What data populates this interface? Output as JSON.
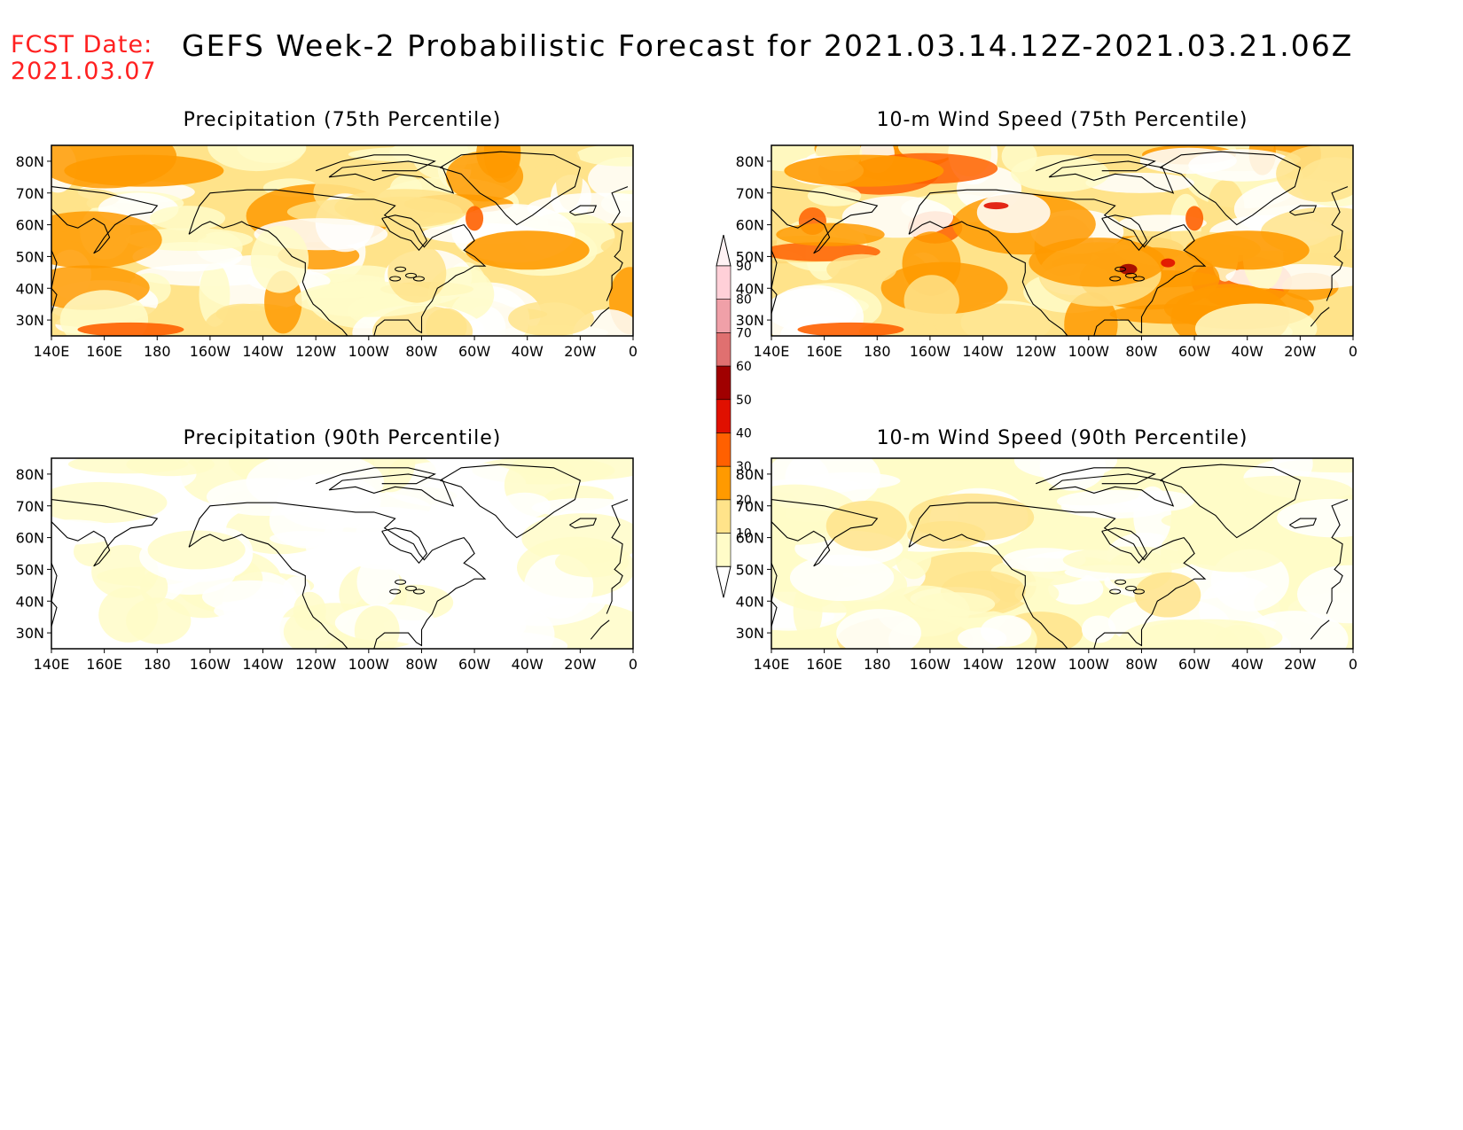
{
  "header": {
    "fcst_label": "FCST Date:",
    "fcst_date": "2021.03.07",
    "title": "GEFS Week-2 Probabilistic Forecast for 2021.03.14.12Z-2021.03.21.06Z"
  },
  "colors": {
    "fcst_text": "#ff2020",
    "shade_10": "#fffcc8",
    "shade_20": "#ffe38a",
    "shade_30": "#ff9a00",
    "shade_40": "#ff6000",
    "shade_50": "#e01000",
    "shade_60": "#a00000",
    "shade_70": "#e07070",
    "shade_80": "#f0a0a8",
    "shade_90": "#ffd0d8"
  },
  "axes": {
    "lat_labels": [
      "80N",
      "70N",
      "60N",
      "50N",
      "40N",
      "30N"
    ],
    "lon_labels": [
      "140E",
      "160E",
      "180",
      "160W",
      "140W",
      "120W",
      "100W",
      "80W",
      "60W",
      "40W",
      "20W",
      "0"
    ]
  },
  "colorbar": {
    "labels": [
      "90",
      "80",
      "70",
      "60",
      "50",
      "40",
      "30",
      "20",
      "10"
    ]
  },
  "panels": [
    {
      "title": "Precipitation (75th Percentile)",
      "level": 0.55
    },
    {
      "title": "10-m Wind Speed (75th Percentile)",
      "level": 0.75
    },
    {
      "title": "Precipitation (90th Percentile)",
      "level": 0.15
    },
    {
      "title": "10-m Wind Speed (90th Percentile)",
      "level": 0.25
    }
  ]
}
